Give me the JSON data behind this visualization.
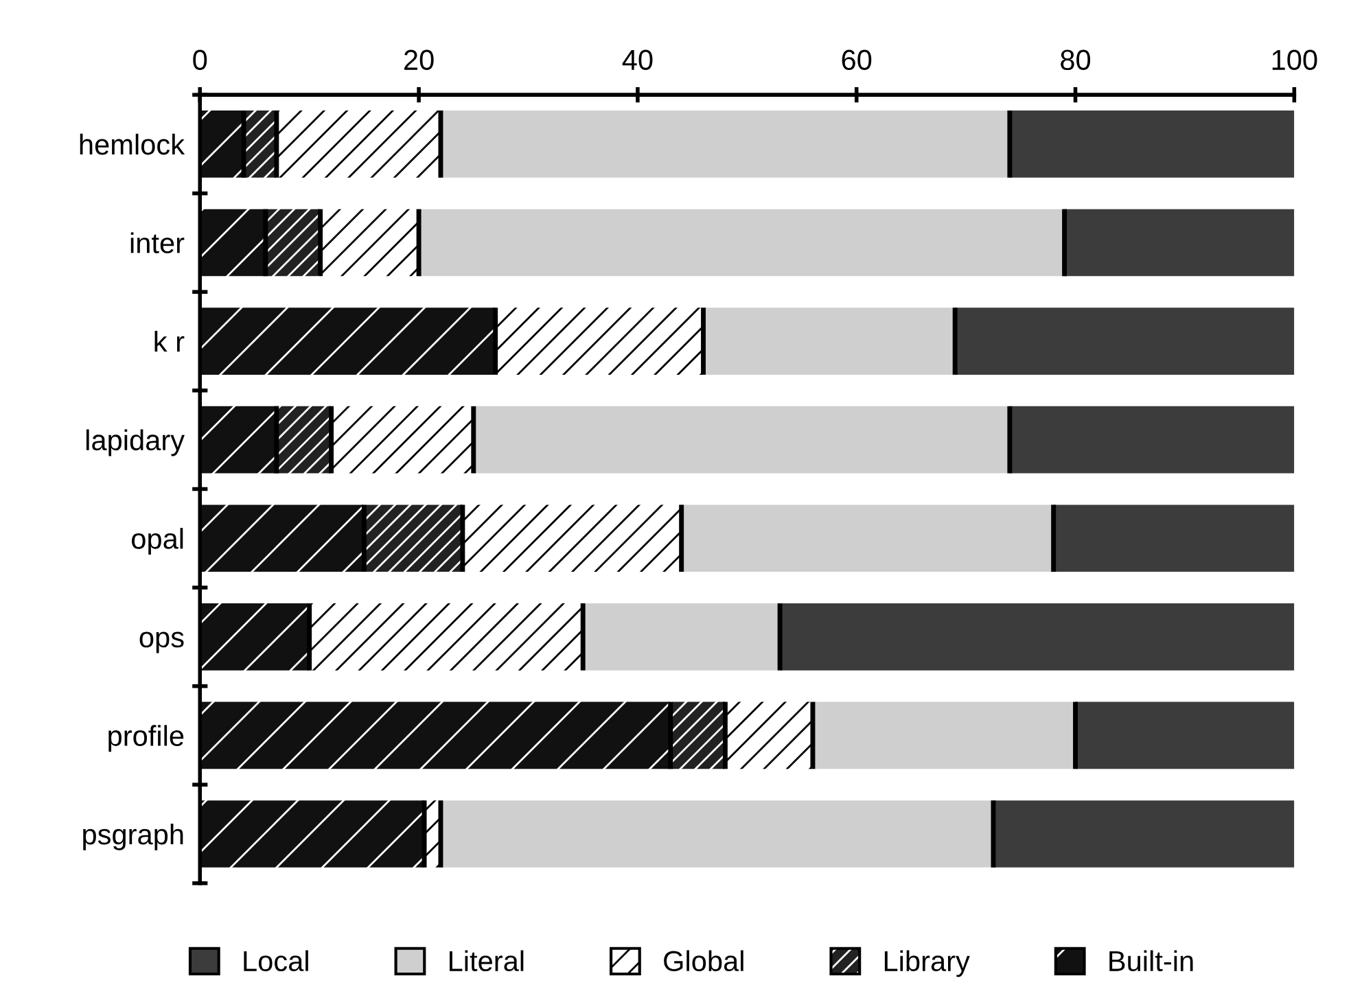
{
  "chart_data": {
    "type": "bar",
    "orientation": "horizontal",
    "stacked": true,
    "categories": [
      "hemlock",
      "inter",
      "k r",
      "lapidary",
      "opal",
      "ops",
      "profile",
      "psgraph"
    ],
    "series": [
      {
        "name": "Built-in",
        "color": "#111111",
        "values": [
          4,
          6,
          27,
          7,
          15,
          10,
          43,
          20.5
        ]
      },
      {
        "name": "Library",
        "color": "#222222",
        "values": [
          3,
          5,
          0,
          5,
          9,
          0,
          5,
          0
        ]
      },
      {
        "name": "Global",
        "color": "#ffffff",
        "values": [
          15,
          9,
          19,
          13,
          20,
          25,
          8,
          1.5
        ]
      },
      {
        "name": "Literal",
        "color": "#cfcfcf",
        "values": [
          52,
          59,
          23,
          49,
          34,
          18,
          24,
          50.5
        ]
      },
      {
        "name": "Local",
        "color": "#3c3c3c",
        "values": [
          26,
          21,
          31,
          26,
          22,
          47,
          20,
          27.5
        ]
      }
    ],
    "xlim": [
      0,
      100
    ],
    "xticks": [
      0,
      20,
      40,
      60,
      80,
      100
    ],
    "grid": false,
    "legend": "bottom"
  }
}
